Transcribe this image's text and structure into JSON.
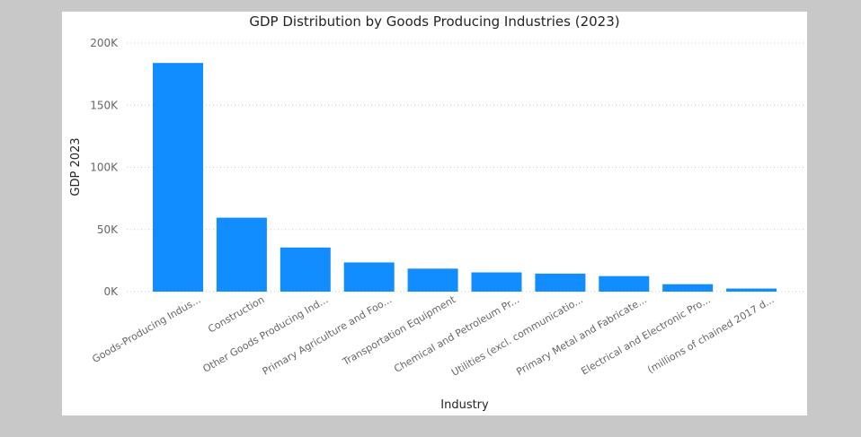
{
  "chart_data": {
    "type": "bar",
    "title": "GDP Distribution by Goods Producing Industries (2023)",
    "xlabel": "Industry",
    "ylabel": "GDP 2023",
    "ylim": [
      0,
      200000
    ],
    "yticks": [
      0,
      50000,
      100000,
      150000,
      200000
    ],
    "ytick_labels": [
      "0K",
      "50K",
      "100K",
      "150K",
      "200K"
    ],
    "categories": [
      "Goods-Producing Indus...",
      "Construction",
      "Other Goods Producing Ind...",
      "Primary Agriculture and Foo...",
      "Transportation Equipment",
      "Chemical and Petroleum Pr...",
      "Utilities (excl. communicatio...",
      "Primary Metal and Fabricate...",
      "Electrical and Electronic Pro...",
      "(millions of chained 2017 d..."
    ],
    "values": [
      184000,
      59500,
      35500,
      23500,
      18500,
      15500,
      14500,
      12500,
      6000,
      2500
    ],
    "bar_color": "#118dff",
    "grid": true
  }
}
